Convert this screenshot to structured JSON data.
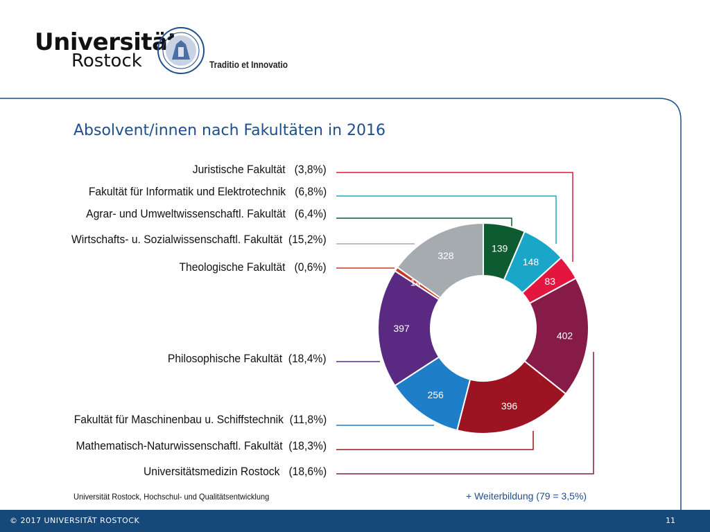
{
  "header": {
    "logo_line1": "Universität",
    "logo_line2": "Rostock",
    "motto": "Traditio et Innovatio"
  },
  "title": "Absolvent/innen nach Fakultäten in 2016",
  "chart_data": {
    "type": "pie",
    "title": "Absolvent/innen nach Fakultäten in 2016",
    "donut": true,
    "series": [
      {
        "name": "Agrar- und Umweltwissenschaftl. Fakultät",
        "value": 139,
        "percent": "(6,4%)",
        "color": "#0e5a31"
      },
      {
        "name": "Fakultät für Informatik und Elektrotechnik",
        "value": 148,
        "percent": "(6,8%)",
        "color": "#1aa6c8"
      },
      {
        "name": "Juristische Fakultät",
        "value": 83,
        "percent": "(3,8%)",
        "color": "#e3163f"
      },
      {
        "name": "Universitätsmedizin Rostock",
        "value": 402,
        "percent": "(18,6%)",
        "color": "#861b47"
      },
      {
        "name": "Mathematisch-Naturwissenschaftl. Fakultät",
        "value": 396,
        "percent": "(18,3%)",
        "color": "#9c1322"
      },
      {
        "name": "Fakultät für Maschinenbau u. Schiffstechnik",
        "value": 256,
        "percent": "(11,8%)",
        "color": "#1e7ec8"
      },
      {
        "name": "Philosophische Fakultät",
        "value": 397,
        "percent": "(18,4%)",
        "color": "#5a2a82"
      },
      {
        "name": "Theologische Fakultät",
        "value": 14,
        "percent": "(0,6%)",
        "color": "#c23a25"
      },
      {
        "name": "Wirtschafts- u. Sozialwissenschaftl. Fakultät",
        "value": 328,
        "percent": "(15,2%)",
        "color": "#a6abb0"
      }
    ]
  },
  "labels": [
    {
      "name": "Juristische Fakultät",
      "percent": "(3,8%)"
    },
    {
      "name": "Fakultät für Informatik und Elektrotechnik",
      "percent": "(6,8%)"
    },
    {
      "name": "Agrar- und Umweltwissenschaftl. Fakultät",
      "percent": "(6,4%)"
    },
    {
      "name": "Wirtschafts- u. Sozialwissenschaftl. Fakultät",
      "percent": "(15,2%)"
    },
    {
      "name": "Theologische Fakultät",
      "percent": "(0,6%)"
    },
    {
      "name": "Philosophische Fakultät",
      "percent": "(18,4%)"
    },
    {
      "name": "Fakultät für Maschinenbau u. Schiffstechnik",
      "percent": "(11,8%)"
    },
    {
      "name": "Mathematisch-Naturwissenschaftl. Fakultät",
      "percent": "(18,3%)"
    },
    {
      "name": "Universitätsmedizin Rostock",
      "percent": "(18,6%)"
    }
  ],
  "source": "Universität Rostock, Hochschul- und Qualitätsentwicklung",
  "note": "+ Weiterbildung (79 = 3,5%)",
  "footer": {
    "copyright": "© 2017 UNIVERSITÄT ROSTOCK",
    "page": "11"
  }
}
